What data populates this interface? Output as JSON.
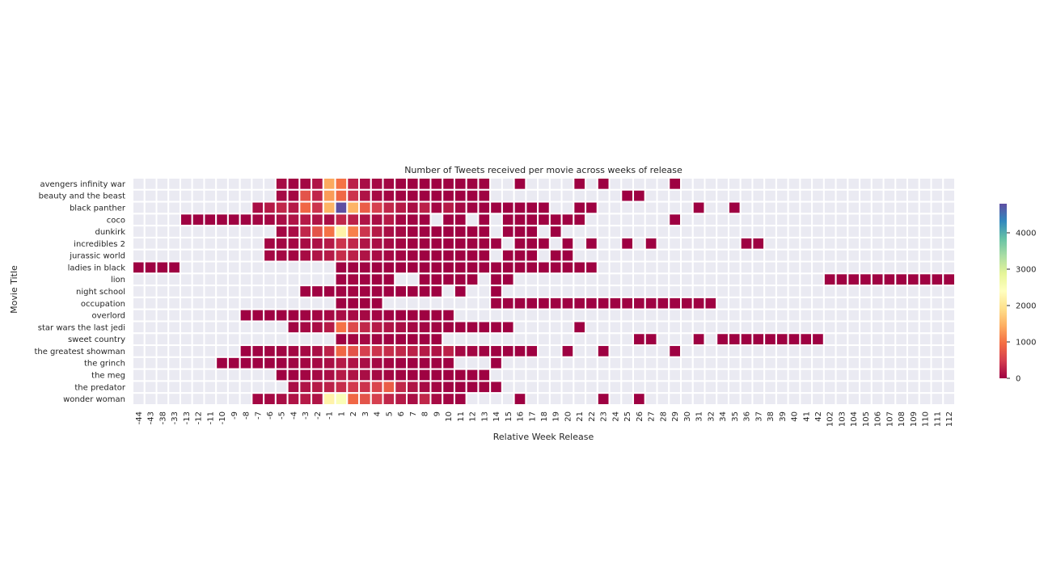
{
  "chart_data": {
    "type": "heatmap",
    "title": "Number of Tweets received per movie across weeks of release",
    "xlabel": "Relative Week Release",
    "ylabel": "Movie Title",
    "columns": [
      "-44",
      "-43",
      "-38",
      "-33",
      "-13",
      "-12",
      "-11",
      "-10",
      "-9",
      "-8",
      "-7",
      "-6",
      "-5",
      "-4",
      "-3",
      "-2",
      "-1",
      "1",
      "2",
      "3",
      "4",
      "5",
      "6",
      "7",
      "8",
      "9",
      "10",
      "11",
      "12",
      "13",
      "14",
      "15",
      "16",
      "17",
      "18",
      "19",
      "20",
      "21",
      "22",
      "23",
      "24",
      "25",
      "26",
      "27",
      "28",
      "29",
      "30",
      "31",
      "32",
      "34",
      "35",
      "36",
      "37",
      "38",
      "39",
      "40",
      "41",
      "42",
      "102",
      "103",
      "104",
      "105",
      "106",
      "107",
      "108",
      "109",
      "110",
      "111",
      "112"
    ],
    "rows": [
      "avengers infinity war",
      "beauty and the beast",
      "black panther",
      "coco",
      "dunkirk",
      "incredibles 2",
      "jurassic world",
      "ladies in black",
      "lion",
      "night school",
      "occupation",
      "overlord",
      "star wars the last jedi",
      "sweet country",
      "the greatest showman",
      "the grinch",
      "the meg",
      "the predator",
      "wonder woman"
    ],
    "value_range": [
      0,
      4800
    ],
    "colorbar_ticks": [
      0,
      1000,
      2000,
      3000,
      4000
    ],
    "colormap": "Spectral",
    "missing_color": "#eaeaf2",
    "grid_line_color": "#ffffff",
    "values": {
      "avengers infinity war": {
        "-5": 80,
        "-4": 30,
        "-3": 40,
        "-2": 150,
        "-1": 1400,
        "1": 1000,
        "2": 250,
        "3": 100,
        "4": 60,
        "5": 40,
        "6": 20,
        "7": 10,
        "8": 10,
        "9": 10,
        "10": 5,
        "11": 5,
        "12": 5,
        "13": 5,
        "16": 1,
        "21": 1,
        "23": 1,
        "29": 1
      },
      "beauty and the beast": {
        "-5": 60,
        "-4": 50,
        "-3": 700,
        "-2": 300,
        "-1": 1300,
        "1": 900,
        "2": 400,
        "3": 150,
        "4": 80,
        "5": 40,
        "6": 30,
        "7": 20,
        "8": 10,
        "9": 10,
        "10": 5,
        "11": 5,
        "12": 5,
        "13": 5,
        "25": 1,
        "26": 1
      },
      "black panther": {
        "-7": 100,
        "-6": 200,
        "-5": 300,
        "-4": 200,
        "-3": 900,
        "-2": 400,
        "-1": 1500,
        "1": 4800,
        "2": 1500,
        "3": 800,
        "4": 500,
        "5": 300,
        "6": 200,
        "7": 100,
        "8": 250,
        "9": 50,
        "10": 200,
        "11": 60,
        "12": 20,
        "13": 10,
        "14": 5,
        "15": 5,
        "16": 5,
        "17": 5,
        "18": 5,
        "21": 1,
        "22": 1,
        "31": 1,
        "35": 1
      },
      "coco": {
        "-13": 5,
        "-12": 5,
        "-11": 5,
        "-10": 5,
        "-9": 5,
        "-8": 5,
        "-7": 40,
        "-6": 50,
        "-5": 100,
        "-4": 150,
        "-3": 200,
        "-2": 150,
        "-1": 100,
        "1": 300,
        "2": 250,
        "3": 150,
        "4": 100,
        "5": 200,
        "6": 50,
        "7": 20,
        "8": 10,
        "10": 5,
        "11": 5,
        "13": 1,
        "15": 5,
        "16": 5,
        "17": 5,
        "18": 5,
        "19": 5,
        "20": 5,
        "21": 5,
        "29": 1
      },
      "dunkirk": {
        "-5": 50,
        "-4": 100,
        "-3": 300,
        "-2": 700,
        "-1": 1000,
        "1": 2200,
        "2": 1100,
        "3": 400,
        "4": 200,
        "5": 100,
        "6": 60,
        "7": 30,
        "8": 20,
        "9": 10,
        "10": 10,
        "11": 5,
        "12": 5,
        "13": 5,
        "15": 5,
        "16": 5,
        "17": 1,
        "19": 1
      },
      "incredibles 2": {
        "-6": 40,
        "-5": 40,
        "-4": 50,
        "-3": 80,
        "-2": 120,
        "-1": 200,
        "1": 400,
        "2": 300,
        "3": 150,
        "4": 100,
        "5": 60,
        "6": 40,
        "7": 20,
        "8": 10,
        "9": 10,
        "10": 5,
        "11": 5,
        "12": 5,
        "13": 5,
        "14": 5,
        "16": 5,
        "17": 5,
        "18": 5,
        "20": 1,
        "22": 1,
        "25": 1,
        "27": 1,
        "36": 1,
        "37": 1
      },
      "jurassic world": {
        "-6": 50,
        "-5": 50,
        "-4": 40,
        "-3": 80,
        "-2": 150,
        "-1": 200,
        "1": 350,
        "2": 250,
        "3": 150,
        "4": 100,
        "5": 60,
        "6": 40,
        "7": 20,
        "8": 10,
        "9": 10,
        "10": 5,
        "11": 5,
        "12": 5,
        "13": 5,
        "15": 5,
        "16": 5,
        "17": 5,
        "19": 1,
        "20": 1
      },
      "ladies in black": {
        "-44": 1,
        "-43": 1,
        "-38": 1,
        "-33": 1,
        "1": 10,
        "2": 20,
        "3": 20,
        "4": 10,
        "5": 10,
        "6": 10,
        "7": 5,
        "8": 5,
        "9": 5,
        "10": 5,
        "11": 5,
        "12": 5,
        "13": 5,
        "14": 5,
        "15": 5,
        "16": 5,
        "17": 5,
        "18": 5,
        "19": 5,
        "20": 5,
        "21": 5,
        "22": 5
      },
      "lion": {
        "1": 20,
        "2": 40,
        "3": 20,
        "4": 10,
        "5": 5,
        "8": 5,
        "9": 5,
        "10": 5,
        "11": 5,
        "12": 5,
        "14": 1,
        "15": 1,
        "102": 5,
        "103": 5,
        "104": 5,
        "105": 5,
        "106": 5,
        "107": 5,
        "108": 5,
        "109": 5,
        "110": 5,
        "111": 5,
        "112": 5
      },
      "night school": {
        "-3": 5,
        "-2": 5,
        "-1": 5,
        "1": 30,
        "2": 40,
        "3": 30,
        "4": 20,
        "5": 10,
        "6": 10,
        "7": 5,
        "8": 5,
        "9": 5,
        "11": 1,
        "14": 1
      },
      "occupation": {
        "1": 10,
        "2": 10,
        "3": 10,
        "4": 5,
        "14": 5,
        "15": 5,
        "16": 5,
        "17": 5,
        "18": 5,
        "19": 5,
        "20": 5,
        "21": 5,
        "22": 5,
        "23": 5,
        "24": 5,
        "25": 5,
        "26": 5,
        "27": 5,
        "28": 5,
        "29": 5,
        "30": 5,
        "31": 5,
        "32": 5
      },
      "overlord": {
        "-8": 5,
        "-7": 5,
        "-6": 5,
        "-5": 5,
        "-4": 10,
        "-3": 20,
        "-2": 40,
        "-1": 60,
        "1": 100,
        "2": 80,
        "3": 60,
        "4": 40,
        "5": 20,
        "6": 10,
        "7": 10,
        "8": 5,
        "9": 5,
        "10": 5
      },
      "star wars the last jedi": {
        "-4": 30,
        "-3": 60,
        "-2": 100,
        "-1": 200,
        "1": 1000,
        "2": 600,
        "3": 300,
        "4": 200,
        "5": 150,
        "6": 100,
        "7": 60,
        "8": 40,
        "9": 20,
        "10": 10,
        "11": 10,
        "12": 5,
        "13": 5,
        "14": 5,
        "15": 5,
        "21": 1
      },
      "sweet country": {
        "1": 10,
        "2": 40,
        "3": 60,
        "4": 30,
        "5": 20,
        "6": 10,
        "7": 5,
        "8": 5,
        "9": 5,
        "26": 1,
        "27": 1,
        "31": 1,
        "34": 1,
        "35": 1,
        "36": 1,
        "37": 1,
        "38": 1,
        "39": 1,
        "40": 1,
        "41": 1,
        "42": 1
      },
      "the greatest showman": {
        "-8": 10,
        "-7": 20,
        "-6": 30,
        "-5": 30,
        "-4": 40,
        "-3": 60,
        "-2": 100,
        "-1": 250,
        "1": 900,
        "2": 700,
        "3": 500,
        "4": 400,
        "5": 350,
        "6": 300,
        "7": 250,
        "8": 200,
        "9": 150,
        "10": 250,
        "11": 60,
        "12": 40,
        "13": 20,
        "14": 10,
        "15": 10,
        "16": 5,
        "17": 5,
        "20": 1,
        "23": 1,
        "29": 1
      },
      "the grinch": {
        "-10": 5,
        "-9": 5,
        "-8": 5,
        "-7": 5,
        "-6": 10,
        "-5": 10,
        "-4": 20,
        "-3": 40,
        "-2": 60,
        "-1": 100,
        "1": 200,
        "2": 150,
        "3": 100,
        "4": 60,
        "5": 40,
        "6": 20,
        "7": 10,
        "8": 10,
        "9": 5,
        "10": 5,
        "14": 1
      },
      "the meg": {
        "-5": 10,
        "-4": 20,
        "-3": 40,
        "-2": 60,
        "-1": 100,
        "1": 200,
        "2": 150,
        "3": 100,
        "4": 60,
        "5": 40,
        "6": 30,
        "7": 20,
        "8": 10,
        "9": 10,
        "10": 5,
        "11": 5,
        "12": 5,
        "13": 5
      },
      "the predator": {
        "-4": 100,
        "-3": 150,
        "-2": 200,
        "-1": 250,
        "1": 350,
        "2": 450,
        "3": 400,
        "4": 550,
        "5": 800,
        "6": 300,
        "7": 150,
        "8": 80,
        "9": 40,
        "10": 20,
        "11": 10,
        "12": 10,
        "13": 10,
        "14": 5
      },
      "wonder woman": {
        "-7": 50,
        "-6": 60,
        "-5": 100,
        "-4": 150,
        "-3": 200,
        "-2": 150,
        "-1": 2200,
        "1": 2500,
        "2": 900,
        "3": 700,
        "4": 500,
        "5": 300,
        "6": 200,
        "7": 100,
        "8": 300,
        "9": 80,
        "10": 40,
        "11": 20,
        "16": 1,
        "23": 1,
        "26": 1
      }
    }
  }
}
